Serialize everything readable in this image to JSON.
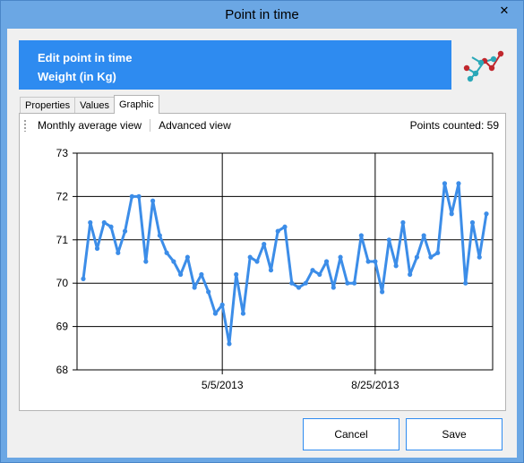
{
  "window": {
    "title": "Point in time",
    "close_glyph": "✕"
  },
  "banner": {
    "line1": "Edit point in time",
    "line2": "Weight (in Kg)"
  },
  "tabs": [
    {
      "label": "Properties",
      "active": false
    },
    {
      "label": "Values",
      "active": false
    },
    {
      "label": "Graphic",
      "active": true
    }
  ],
  "toolbar": {
    "monthly": "Monthly average view",
    "advanced": "Advanced view",
    "points_label": "Points counted: 59"
  },
  "buttons": {
    "cancel": "Cancel",
    "save": "Save"
  },
  "colors": {
    "accent": "#2e8bf0",
    "line": "#3c8de8",
    "logo_red": "#c0272d",
    "logo_teal": "#2aa8b8"
  },
  "chart_data": {
    "type": "line",
    "title": "",
    "xlabel": "",
    "ylabel": "",
    "ylim": [
      68,
      73
    ],
    "yticks": [
      68,
      69,
      70,
      71,
      72,
      73
    ],
    "xtick_labels": [
      "5/5/2013",
      "8/25/2013"
    ],
    "xtick_index": [
      20,
      42
    ],
    "grid": true,
    "series": [
      {
        "values": [
          70.1,
          71.4,
          70.8,
          71.4,
          71.3,
          70.7,
          71.2,
          72.0,
          72.0,
          70.5,
          71.9,
          71.1,
          70.7,
          70.5,
          70.2,
          70.6,
          69.9,
          70.2,
          69.8,
          69.3,
          69.5,
          68.6,
          70.2,
          69.3,
          70.6,
          70.5,
          70.9,
          70.3,
          71.2,
          71.3,
          70.0,
          69.9,
          70.0,
          70.3,
          70.2,
          70.5,
          69.9,
          70.6,
          70.0,
          70.0,
          71.1,
          70.5,
          70.5,
          69.8,
          71.0,
          70.4,
          71.4,
          70.2,
          70.6,
          71.1,
          70.6,
          70.7,
          72.3,
          71.6,
          72.3,
          70.0,
          71.4,
          70.6,
          71.6
        ]
      }
    ]
  }
}
